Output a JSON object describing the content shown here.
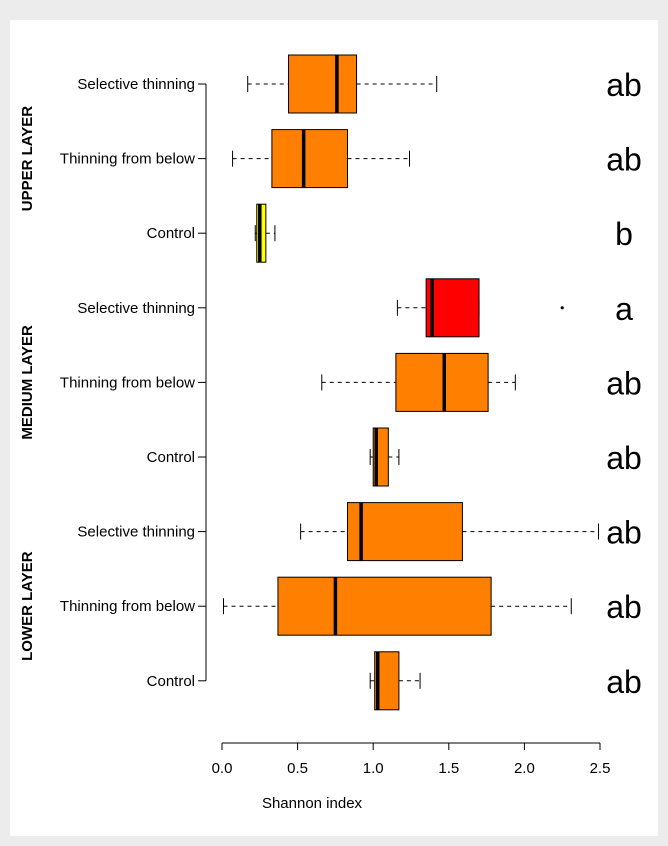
{
  "chart_data": {
    "type": "boxplot",
    "orientation": "horizontal",
    "xlabel": "Shannon index",
    "xlim": [
      0,
      2.5
    ],
    "xticks": [
      "0.0",
      "0.5",
      "1.0",
      "1.5",
      "2.0",
      "2.5"
    ],
    "groups": [
      {
        "label": "UPPER LAYER",
        "rows": [
          {
            "category": "Selective thinning",
            "min": 0.17,
            "q1": 0.44,
            "median": 0.76,
            "q3": 0.89,
            "max": 1.42,
            "outliers": [],
            "letter": "ab",
            "color": "#ff7f00"
          },
          {
            "category": "Thinning from below",
            "min": 0.07,
            "q1": 0.33,
            "median": 0.54,
            "q3": 0.83,
            "max": 1.24,
            "outliers": [],
            "letter": "ab",
            "color": "#ff7f00"
          },
          {
            "category": "Control",
            "min": 0.22,
            "q1": 0.23,
            "median": 0.25,
            "q3": 0.29,
            "max": 0.35,
            "outliers": [],
            "letter": "b",
            "color": "#ffff00"
          }
        ]
      },
      {
        "label": "MEDIUM LAYER",
        "rows": [
          {
            "category": "Selective thinning",
            "min": 1.16,
            "q1": 1.35,
            "median": 1.39,
            "q3": 1.7,
            "max": 1.7,
            "outliers": [
              2.25
            ],
            "letter": "a",
            "color": "#ff0000"
          },
          {
            "category": "Thinning from below",
            "min": 0.66,
            "q1": 1.15,
            "median": 1.47,
            "q3": 1.76,
            "max": 1.94,
            "outliers": [],
            "letter": "ab",
            "color": "#ff7f00"
          },
          {
            "category": "Control",
            "min": 0.98,
            "q1": 1.0,
            "median": 1.02,
            "q3": 1.1,
            "max": 1.17,
            "outliers": [],
            "letter": "ab",
            "color": "#ff7f00"
          }
        ]
      },
      {
        "label": "LOWER LAYER",
        "rows": [
          {
            "category": "Selective thinning",
            "min": 0.52,
            "q1": 0.83,
            "median": 0.92,
            "q3": 1.59,
            "max": 2.49,
            "outliers": [],
            "letter": "ab",
            "color": "#ff7f00"
          },
          {
            "category": "Thinning from below",
            "min": 0.01,
            "q1": 0.37,
            "median": 0.75,
            "q3": 1.78,
            "max": 2.31,
            "outliers": [],
            "letter": "ab",
            "color": "#ff7f00"
          },
          {
            "category": "Control",
            "min": 0.98,
            "q1": 1.01,
            "median": 1.03,
            "q3": 1.17,
            "max": 1.31,
            "outliers": [],
            "letter": "ab",
            "color": "#ff7f00"
          }
        ]
      }
    ]
  }
}
